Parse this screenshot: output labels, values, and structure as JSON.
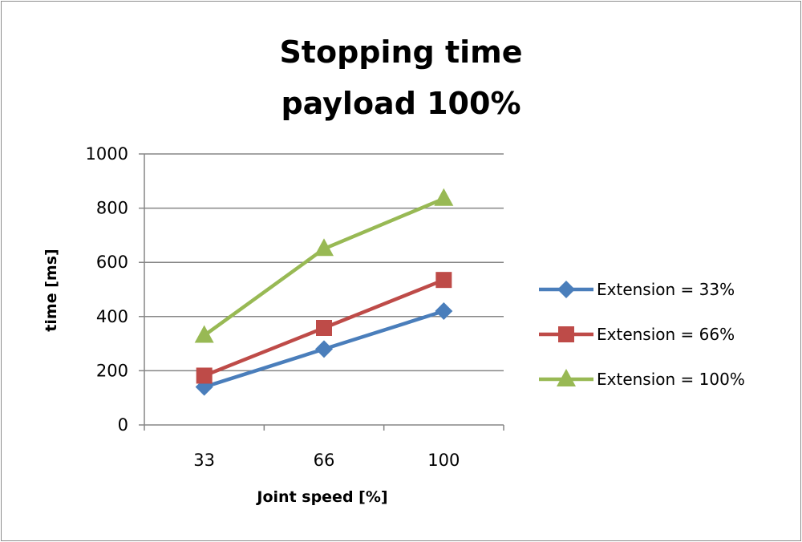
{
  "chart_data": {
    "type": "line",
    "title": [
      "Stopping time",
      "payload 100%"
    ],
    "xlabel": "Joint speed [%]",
    "ylabel": "time [ms]",
    "categories": [
      "33",
      "66",
      "100"
    ],
    "ylim": [
      0,
      1000
    ],
    "yticks": [
      "0",
      "200",
      "400",
      "600",
      "800",
      "1000"
    ],
    "grid": true,
    "legend_position": "right",
    "series": [
      {
        "name": "Extension = 33%",
        "values": [
          140,
          280,
          420
        ],
        "color": "#4a7ebb",
        "marker": "diamond"
      },
      {
        "name": "Extension = 66%",
        "values": [
          182,
          358,
          535
        ],
        "color": "#be4b48",
        "marker": "square"
      },
      {
        "name": "Extension = 100%",
        "values": [
          330,
          650,
          835
        ],
        "color": "#98b954",
        "marker": "triangle"
      }
    ]
  }
}
